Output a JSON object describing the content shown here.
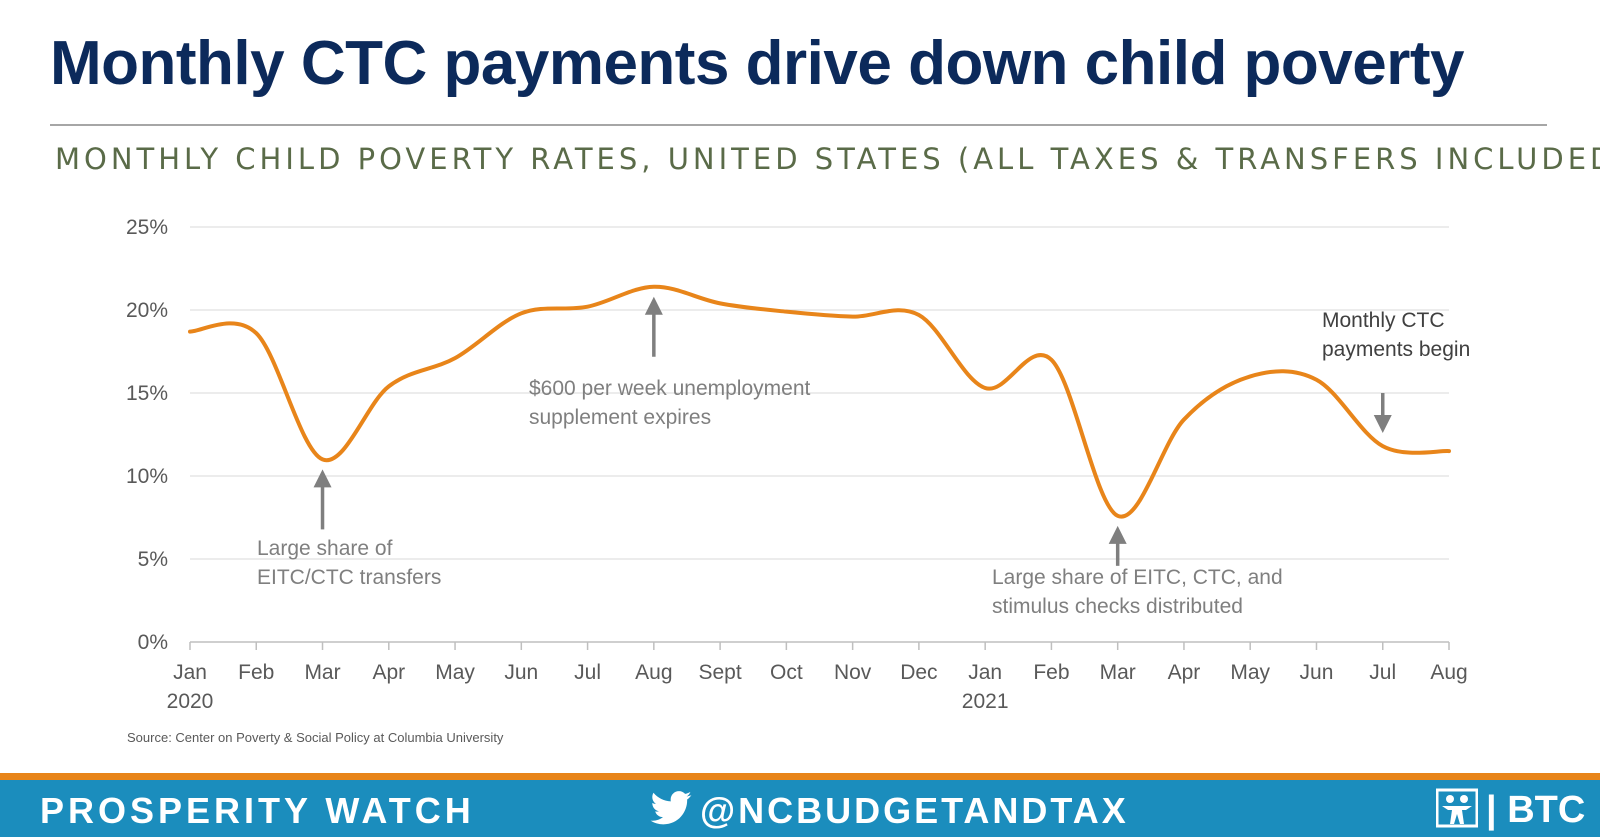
{
  "header": {
    "title": "Monthly CTC payments drive down child poverty",
    "subtitle": "MONTHLY CHILD POVERTY RATES, UNITED STATES (ALL TAXES & TRANSFERS INCLUDED)"
  },
  "chart_data": {
    "type": "line",
    "title": "Monthly CTC payments drive down child poverty",
    "subtitle": "MONTHLY CHILD POVERTY RATES, UNITED STATES (ALL TAXES & TRANSFERS INCLUDED)",
    "categories": [
      "Jan\n2020",
      "Feb",
      "Mar",
      "Apr",
      "May",
      "Jun",
      "Jul",
      "Aug",
      "Sept",
      "Oct",
      "Nov",
      "Dec",
      "Jan\n2021",
      "Feb",
      "Mar",
      "Apr",
      "May",
      "Jun",
      "Jul",
      "Aug"
    ],
    "category_labels": [
      "Jan",
      "Feb",
      "Mar",
      "Apr",
      "May",
      "Jun",
      "Jul",
      "Aug",
      "Sept",
      "Oct",
      "Nov",
      "Dec",
      "Jan",
      "Feb",
      "Mar",
      "Apr",
      "May",
      "Jun",
      "Jul",
      "Aug"
    ],
    "year_labels": [
      {
        "index": 0,
        "label": "2020"
      },
      {
        "index": 12,
        "label": "2021"
      }
    ],
    "series": [
      {
        "values": [
          18.7,
          18.6,
          11.0,
          15.4,
          17.1,
          19.8,
          20.2,
          21.4,
          20.4,
          19.9,
          19.6,
          19.7,
          15.3,
          17.0,
          7.6,
          13.4,
          16.0,
          15.8,
          11.8,
          11.5
        ]
      }
    ],
    "ylim": [
      0,
      25
    ],
    "yticks": [
      "0%",
      "5%",
      "10%",
      "15%",
      "20%",
      "25%"
    ],
    "xlabel": "",
    "ylabel": "",
    "grid": true,
    "annotations": [
      {
        "text": [
          "Large share of",
          "EITC/CTC transfers"
        ],
        "target_index": 2
      },
      {
        "text": [
          "$600 per week unemployment",
          "supplement expires"
        ],
        "target_index": 7
      },
      {
        "text": [
          "Large share of EITC, CTC, and",
          "stimulus checks distributed"
        ],
        "target_index": 14
      },
      {
        "text": [
          "Monthly CTC",
          "payments begin"
        ],
        "target_index": 18
      }
    ],
    "line_color": "#e8851a"
  },
  "source": "Source: Center on Poverty & Social Policy at Columbia University",
  "footer": {
    "left": "PROSPERITY WATCH",
    "handle": "@NCBUDGETANDTAX",
    "logo_text": "| BTC",
    "bird": "twitter-bird-icon"
  },
  "colors": {
    "title": "#0c2a5b",
    "subtitle": "#5a6b48",
    "footer_bg": "#1b8dbd",
    "footer_stripe": "#e8851a",
    "arrow": "#7f7f7f"
  }
}
